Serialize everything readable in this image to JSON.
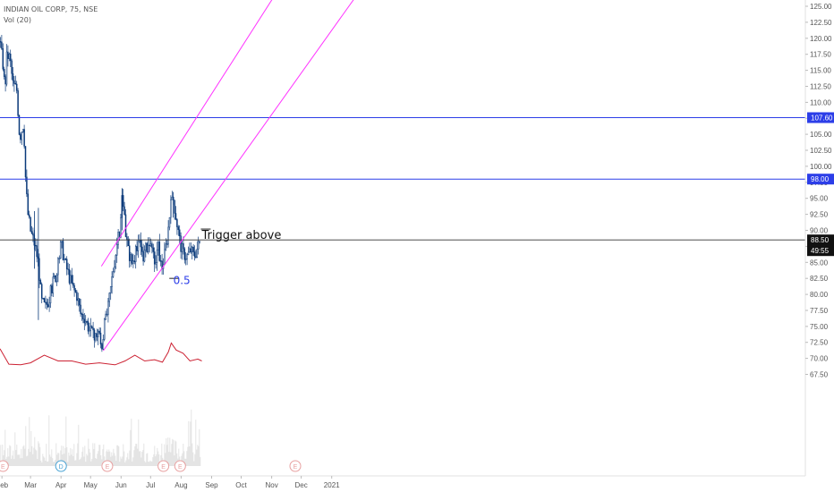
{
  "header": {
    "symbol_line": "INDIAN OIL CORP, 75, NSE",
    "indicator_line": "Vol (20)"
  },
  "colors": {
    "candles": "#0b3a7a",
    "channel": "#ff33ff",
    "level_line": "#2c3ee8",
    "price_line": "#333333",
    "volume_bars": "#d8d8d8",
    "volume_ma": "#cc2233",
    "event_marker": "#e8a0a0",
    "dividend_marker": "#4aa3d4",
    "axis_text": "#555555"
  },
  "chart_data": {
    "type": "candlestick",
    "title": "INDIAN OIL CORP, 75, NSE",
    "indicator": "Vol (20)",
    "ylim": [
      66.5,
      126.2
    ],
    "y_ticks": [
      "125.00",
      "122.50",
      "120.00",
      "117.50",
      "115.00",
      "112.50",
      "110.00",
      "107.50",
      "105.00",
      "102.50",
      "100.00",
      "97.50",
      "95.00",
      "92.50",
      "90.00",
      "87.50",
      "85.00",
      "82.50",
      "80.00",
      "77.50",
      "75.00",
      "72.50",
      "70.00",
      "67.50"
    ],
    "x_ticks": [
      "Feb",
      "Mar",
      "Apr",
      "May",
      "Jun",
      "Jul",
      "Aug",
      "Sep",
      "Oct",
      "Nov",
      "Dec",
      "2021"
    ],
    "price_path": [
      [
        "2020-01-30",
        119.5
      ],
      [
        "2020-02-02",
        116.0
      ],
      [
        "2020-02-04",
        112.0
      ],
      [
        "2020-02-06",
        117.5
      ],
      [
        "2020-02-09",
        117.0
      ],
      [
        "2020-02-12",
        113.0
      ],
      [
        "2020-02-16",
        112.0
      ],
      [
        "2020-02-19",
        104.5
      ],
      [
        "2020-02-23",
        107.0
      ],
      [
        "2020-02-25",
        98.0
      ],
      [
        "2020-02-27",
        93.0
      ],
      [
        "2020-03-01",
        90.0
      ],
      [
        "2020-03-05",
        88.0
      ],
      [
        "2020-03-09",
        85.0
      ],
      [
        "2020-03-12",
        79.0
      ],
      [
        "2020-03-16",
        78.0
      ],
      [
        "2020-03-20",
        79.5
      ],
      [
        "2020-03-24",
        82.0
      ],
      [
        "2020-03-28",
        83.5
      ],
      [
        "2020-04-01",
        88.0
      ],
      [
        "2020-04-05",
        85.0
      ],
      [
        "2020-04-09",
        83.0
      ],
      [
        "2020-04-13",
        81.0
      ],
      [
        "2020-04-17",
        80.0
      ],
      [
        "2020-04-21",
        77.0
      ],
      [
        "2020-04-25",
        76.5
      ],
      [
        "2020-04-30",
        74.5
      ],
      [
        "2020-05-05",
        73.0
      ],
      [
        "2020-05-09",
        74.5
      ],
      [
        "2020-05-12",
        71.5
      ],
      [
        "2020-05-15",
        75.0
      ],
      [
        "2020-05-19",
        78.0
      ],
      [
        "2020-05-24",
        84.0
      ],
      [
        "2020-05-28",
        88.0
      ],
      [
        "2020-05-31",
        90.0
      ],
      [
        "2020-06-02",
        95.5
      ],
      [
        "2020-06-05",
        90.5
      ],
      [
        "2020-06-08",
        87.0
      ],
      [
        "2020-06-12",
        85.0
      ],
      [
        "2020-06-16",
        86.5
      ],
      [
        "2020-06-20",
        88.0
      ],
      [
        "2020-06-24",
        86.0
      ],
      [
        "2020-06-28",
        88.0
      ],
      [
        "2020-07-02",
        86.5
      ],
      [
        "2020-07-06",
        85.0
      ],
      [
        "2020-07-09",
        87.5
      ],
      [
        "2020-07-12",
        84.0
      ],
      [
        "2020-07-15",
        86.0
      ],
      [
        "2020-07-18",
        89.0
      ],
      [
        "2020-07-21",
        93.5
      ],
      [
        "2020-07-24",
        95.0
      ],
      [
        "2020-07-28",
        91.0
      ],
      [
        "2020-07-31",
        88.0
      ],
      [
        "2020-08-03",
        86.5
      ],
      [
        "2020-08-07",
        86.0
      ],
      [
        "2020-08-11",
        87.0
      ],
      [
        "2020-08-14",
        86.0
      ],
      [
        "2020-08-18",
        87.5
      ],
      [
        "2020-08-21",
        88.5
      ]
    ],
    "volume_ma": [
      [
        "2020-01-30",
        71.5
      ],
      [
        "2020-02-08",
        69.1
      ],
      [
        "2020-02-20",
        69.0
      ],
      [
        "2020-03-01",
        69.3
      ],
      [
        "2020-03-15",
        70.5
      ],
      [
        "2020-03-29",
        69.6
      ],
      [
        "2020-04-12",
        69.6
      ],
      [
        "2020-04-26",
        69.1
      ],
      [
        "2020-05-10",
        69.3
      ],
      [
        "2020-05-26",
        69.0
      ],
      [
        "2020-06-05",
        69.6
      ],
      [
        "2020-06-15",
        70.5
      ],
      [
        "2020-06-25",
        69.6
      ],
      [
        "2020-07-05",
        69.8
      ],
      [
        "2020-07-13",
        69.4
      ],
      [
        "2020-07-19",
        71.0
      ],
      [
        "2020-07-22",
        72.4
      ],
      [
        "2020-07-27",
        71.3
      ],
      [
        "2020-08-03",
        70.8
      ],
      [
        "2020-08-10",
        69.6
      ],
      [
        "2020-08-18",
        69.9
      ],
      [
        "2020-08-22",
        69.6
      ]
    ],
    "channel_lines": [
      {
        "start": [
          "2020-05-12",
          84.4
        ],
        "end": [
          "2020-11-02",
          126.2
        ]
      },
      {
        "start": [
          "2020-05-14",
          71.2
        ],
        "end": [
          "2021-01-24",
          126.2
        ]
      }
    ],
    "horizontal_levels": [
      {
        "value": 107.6,
        "label": "107.60"
      },
      {
        "value": 98.0,
        "label": "98.00"
      }
    ],
    "current_price": {
      "value": 88.5,
      "label": "88.50",
      "countdown": "49:55"
    },
    "annotations": [
      {
        "text": "Trigger above",
        "x": "2020-08-22",
        "y": 88.7
      },
      {
        "text": "0.5",
        "x": "2020-07-24",
        "y": 81.6
      }
    ],
    "markers": [
      {
        "date": "2020-02-02",
        "label": "E"
      },
      {
        "date": "2020-04-01",
        "label": "D"
      },
      {
        "date": "2020-05-18",
        "label": "E"
      },
      {
        "date": "2020-07-14",
        "label": "E"
      },
      {
        "date": "2020-07-31",
        "label": "E"
      },
      {
        "date": "2020-11-25",
        "label": "E"
      }
    ]
  }
}
